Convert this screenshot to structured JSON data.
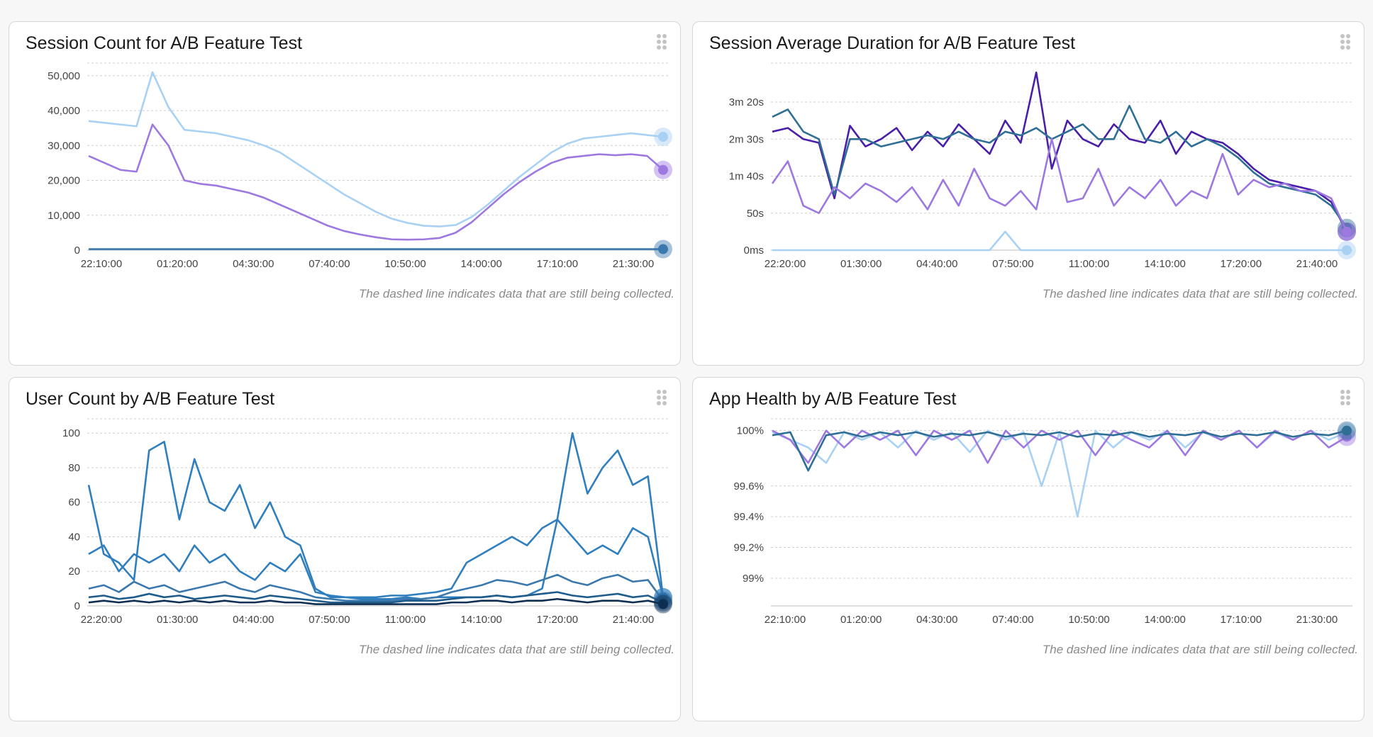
{
  "note": "The dashed line indicates data that are still being collected.",
  "colors": {
    "light_blue": "#a8d1f4",
    "lavender": "#9d78e0",
    "steel_blue": "#3a78ad",
    "dark_purple": "#4a1fa8",
    "teal": "#2f6f96",
    "grid": "#cfcfcf"
  },
  "icons": {
    "drag": "drag-handle-icon"
  },
  "charts": [
    {
      "title": "Session Count for A/B Feature Test",
      "chart_data": {
        "type": "line",
        "x_ticks": [
          "22:10:00",
          "01:20:00",
          "04:30:00",
          "07:40:00",
          "10:50:00",
          "14:00:00",
          "17:10:00",
          "21:30:00"
        ],
        "y_ticks": [
          "0",
          "10,000",
          "20,000",
          "30,000",
          "40,000",
          "50,000"
        ],
        "ylim": [
          0,
          52000
        ],
        "series": [
          {
            "color": "#a8d1f4",
            "values": [
              37000,
              36500,
              36000,
              35500,
              51000,
              41000,
              34500,
              34000,
              33500,
              32500,
              31500,
              30000,
              28000,
              25000,
              22000,
              19000,
              16000,
              13500,
              11000,
              9000,
              7800,
              7000,
              6800,
              7200,
              9500,
              13000,
              17000,
              21000,
              24500,
              28000,
              30500,
              32000,
              32500,
              33000,
              33500,
              33000,
              32500
            ]
          },
          {
            "color": "#9d78e0",
            "values": [
              27000,
              25000,
              23000,
              22500,
              36000,
              30000,
              20000,
              19000,
              18500,
              17500,
              16500,
              15000,
              13000,
              11000,
              9000,
              7000,
              5500,
              4500,
              3700,
              3100,
              3000,
              3100,
              3500,
              5000,
              8000,
              12000,
              16000,
              19500,
              22500,
              25000,
              26500,
              27000,
              27500,
              27200,
              27500,
              27000,
              23000
            ]
          },
          {
            "color": "#3a78ad",
            "values": [
              300,
              300,
              300,
              300,
              300,
              300,
              300,
              300,
              300,
              300,
              300,
              300,
              300,
              300,
              300,
              300,
              300,
              300,
              300,
              300,
              300,
              300,
              300,
              300,
              300,
              300,
              300,
              300,
              300,
              300,
              300,
              300,
              300,
              300,
              300,
              300,
              300
            ]
          }
        ]
      }
    },
    {
      "title": "Session Average Duration for A/B Feature Test",
      "chart_data": {
        "type": "line",
        "x_ticks": [
          "22:20:00",
          "01:30:00",
          "04:40:00",
          "07:50:00",
          "11:00:00",
          "14:10:00",
          "17:20:00",
          "21:40:00"
        ],
        "y_ticks": [
          "0ms",
          "50s",
          "1m 40s",
          "2m 30s",
          "3m 20s"
        ],
        "y_tick_values": [
          0,
          50,
          100,
          150,
          200
        ],
        "ylim": [
          0,
          245
        ],
        "series": [
          {
            "color": "#4a1fa8",
            "values": [
              160,
              165,
              150,
              145,
              70,
              168,
              140,
              150,
              165,
              135,
              160,
              140,
              170,
              150,
              130,
              175,
              145,
              240,
              110,
              175,
              150,
              140,
              170,
              150,
              145,
              175,
              130,
              160,
              150,
              145,
              130,
              110,
              95,
              90,
              85,
              80,
              65,
              25
            ]
          },
          {
            "color": "#2f6f96",
            "values": [
              180,
              190,
              160,
              150,
              75,
              150,
              150,
              140,
              145,
              150,
              155,
              150,
              160,
              150,
              145,
              160,
              155,
              165,
              150,
              160,
              170,
              150,
              150,
              195,
              150,
              145,
              160,
              140,
              150,
              140,
              125,
              105,
              90,
              85,
              80,
              75,
              60,
              30
            ]
          },
          {
            "color": "#9d78e0",
            "values": [
              90,
              120,
              60,
              50,
              85,
              70,
              90,
              80,
              65,
              85,
              55,
              95,
              60,
              110,
              70,
              60,
              80,
              55,
              150,
              65,
              70,
              110,
              60,
              85,
              70,
              95,
              60,
              80,
              70,
              130,
              75,
              95,
              85,
              90,
              80,
              80,
              70,
              25
            ]
          },
          {
            "color": "#a8d1f4",
            "values": [
              0,
              0,
              0,
              0,
              0,
              0,
              0,
              0,
              0,
              0,
              0,
              0,
              0,
              0,
              0,
              25,
              0,
              0,
              0,
              0,
              0,
              0,
              0,
              0,
              0,
              0,
              0,
              0,
              0,
              0,
              0,
              0,
              0,
              0,
              0,
              0,
              0,
              0
            ]
          }
        ]
      }
    },
    {
      "title": "User Count by A/B Feature Test",
      "chart_data": {
        "type": "line",
        "x_ticks": [
          "22:20:00",
          "01:30:00",
          "04:40:00",
          "07:50:00",
          "11:00:00",
          "14:10:00",
          "17:20:00",
          "21:40:00"
        ],
        "y_ticks": [
          "0",
          "20",
          "40",
          "60",
          "80",
          "100"
        ],
        "ylim": [
          0,
          105
        ],
        "series": [
          {
            "color": "#2f7fbf",
            "values": [
              70,
              30,
              25,
              15,
              90,
              95,
              50,
              85,
              60,
              55,
              70,
              45,
              60,
              40,
              35,
              10,
              5,
              5,
              4,
              4,
              4,
              5,
              4,
              5,
              5,
              5,
              5,
              6,
              5,
              6,
              10,
              50,
              100,
              65,
              80,
              90,
              70,
              75,
              5
            ]
          },
          {
            "color": "#2f7fbf",
            "values": [
              30,
              35,
              20,
              30,
              25,
              30,
              20,
              35,
              25,
              30,
              20,
              15,
              25,
              20,
              30,
              8,
              6,
              5,
              5,
              5,
              6,
              6,
              7,
              8,
              10,
              25,
              30,
              35,
              40,
              35,
              45,
              50,
              40,
              30,
              35,
              30,
              45,
              40,
              5
            ]
          },
          {
            "color": "#3a78ad",
            "values": [
              10,
              12,
              8,
              14,
              10,
              12,
              8,
              10,
              12,
              14,
              10,
              8,
              12,
              10,
              8,
              5,
              4,
              3,
              3,
              3,
              3,
              4,
              4,
              5,
              8,
              10,
              12,
              15,
              14,
              12,
              15,
              18,
              14,
              12,
              16,
              18,
              14,
              15,
              3
            ]
          },
          {
            "color": "#1e5c8c",
            "values": [
              5,
              6,
              4,
              5,
              7,
              5,
              6,
              4,
              5,
              6,
              5,
              4,
              6,
              5,
              4,
              3,
              2,
              2,
              2,
              2,
              2,
              3,
              3,
              3,
              4,
              5,
              5,
              6,
              5,
              6,
              7,
              8,
              6,
              5,
              6,
              7,
              5,
              6,
              2
            ]
          },
          {
            "color": "#0f2f52",
            "values": [
              2,
              3,
              2,
              3,
              2,
              3,
              2,
              3,
              2,
              3,
              2,
              2,
              3,
              2,
              2,
              1,
              1,
              1,
              1,
              1,
              1,
              1,
              1,
              1,
              2,
              2,
              3,
              3,
              2,
              3,
              3,
              4,
              3,
              2,
              3,
              3,
              2,
              3,
              1
            ]
          }
        ]
      }
    },
    {
      "title": "App Health by A/B Feature Test",
      "chart_data": {
        "type": "line",
        "x_ticks": [
          "22:10:00",
          "01:20:00",
          "04:30:00",
          "07:40:00",
          "10:50:00",
          "14:00:00",
          "17:10:00",
          "21:30:00"
        ],
        "y_ticks": [
          "99%",
          "99.2%",
          "99.4%",
          "99.6%",
          "100%"
        ],
        "y_tick_values": [
          99.0,
          99.2,
          99.4,
          99.6,
          99.96
        ],
        "ylim": [
          98.82,
          100.0
        ],
        "series": [
          {
            "color": "#a8d1f4",
            "values": [
              99.95,
              99.9,
              99.85,
              99.75,
              99.95,
              99.9,
              99.95,
              99.85,
              99.96,
              99.9,
              99.95,
              99.82,
              99.96,
              99.9,
              99.95,
              99.6,
              99.95,
              99.4,
              99.96,
              99.85,
              99.95,
              99.9,
              99.96,
              99.85,
              99.95,
              99.9,
              99.96,
              99.85,
              99.95,
              99.9,
              99.96,
              99.9,
              99.95
            ]
          },
          {
            "color": "#9d78e0",
            "values": [
              99.96,
              99.9,
              99.75,
              99.96,
              99.85,
              99.96,
              99.9,
              99.96,
              99.8,
              99.96,
              99.9,
              99.96,
              99.75,
              99.96,
              99.85,
              99.96,
              99.9,
              99.96,
              99.8,
              99.96,
              99.9,
              99.85,
              99.96,
              99.8,
              99.96,
              99.9,
              99.96,
              99.85,
              99.96,
              99.9,
              99.96,
              99.85,
              99.92
            ]
          },
          {
            "color": "#2f6f96",
            "values": [
              99.93,
              99.95,
              99.7,
              99.93,
              99.95,
              99.92,
              99.95,
              99.93,
              99.95,
              99.92,
              99.94,
              99.93,
              99.95,
              99.92,
              99.94,
              99.93,
              99.95,
              99.92,
              99.94,
              99.93,
              99.95,
              99.92,
              99.94,
              99.93,
              99.95,
              99.92,
              99.94,
              99.93,
              99.95,
              99.92,
              99.94,
              99.93,
              99.96
            ]
          }
        ]
      }
    }
  ]
}
